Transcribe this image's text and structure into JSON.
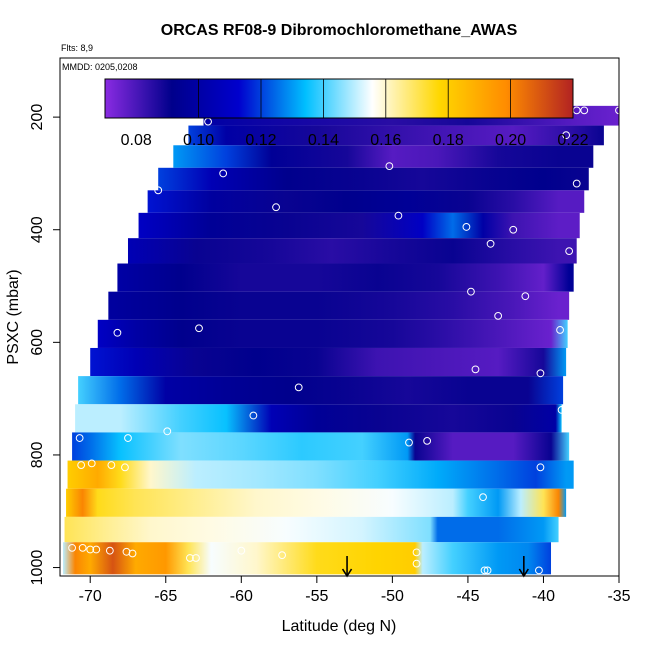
{
  "chart_data": {
    "type": "heatmap",
    "title": "ORCAS RF08-9 Dibromochloromethane_AWAS",
    "flights_label": "Flts: 8,9",
    "dates_label": "MMDD: 0205,0208",
    "xlabel": "Latitude (deg N)",
    "ylabel": "PSXC (mbar)",
    "xlim": [
      -72.0,
      -35.0
    ],
    "ylim": [
      1015,
      95
    ],
    "x_ticks": [
      -70,
      -65,
      -60,
      -55,
      -50,
      -45,
      -40,
      -35
    ],
    "x_tick_labels": [
      "-70",
      "-65",
      "-60",
      "-55",
      "-50",
      "-45",
      "-40",
      "-35"
    ],
    "y_ticks": [
      200,
      400,
      600,
      800,
      1000
    ],
    "y_tick_labels": [
      "200",
      "400",
      "600",
      "800",
      "1000"
    ],
    "colorbar": {
      "range": [
        0.07,
        0.22
      ],
      "ticks": [
        0.08,
        0.1,
        0.12,
        0.14,
        0.16,
        0.18,
        0.2,
        0.22
      ],
      "tick_labels": [
        "0.08",
        "0.10",
        "0.12",
        "0.14",
        "0.16",
        "0.18",
        "0.20",
        "0.22"
      ],
      "colors": [
        "#8a2be2",
        "#00008b",
        "#0000cd",
        "#00bfff",
        "#ffffff",
        "#ffd700",
        "#ff8c00",
        "#b22222"
      ],
      "dividers": [
        0.1,
        0.12,
        0.14,
        0.16,
        0.18,
        0.2
      ]
    },
    "bands": [
      {
        "p_top": 180,
        "p_bot": 215,
        "lat_start": -62.5,
        "lat_end": -35.0,
        "nodes": [
          [
            -62.5,
            0.1
          ],
          [
            -50,
            0.085
          ],
          [
            -45,
            0.088
          ],
          [
            -38,
            0.078
          ],
          [
            -35,
            0.075
          ]
        ]
      },
      {
        "p_top": 215,
        "p_bot": 250,
        "lat_start": -63.5,
        "lat_end": -36.0,
        "nodes": [
          [
            -63.5,
            0.12
          ],
          [
            -61,
            0.1
          ],
          [
            -55,
            0.088
          ],
          [
            -48,
            0.082
          ],
          [
            -42,
            0.078
          ],
          [
            -38,
            0.085
          ],
          [
            -36,
            0.09
          ]
        ]
      },
      {
        "p_top": 250,
        "p_bot": 290,
        "lat_start": -64.5,
        "lat_end": -36.7,
        "nodes": [
          [
            -64.5,
            0.13
          ],
          [
            -61,
            0.12
          ],
          [
            -58,
            0.095
          ],
          [
            -53,
            0.088
          ],
          [
            -50,
            0.078
          ],
          [
            -47,
            0.08
          ],
          [
            -43,
            0.088
          ],
          [
            -39,
            0.09
          ]
        ]
      },
      {
        "p_top": 290,
        "p_bot": 330,
        "lat_start": -65.5,
        "lat_end": -37.0,
        "nodes": [
          [
            -65.5,
            0.12
          ],
          [
            -62,
            0.105
          ],
          [
            -57,
            0.092
          ],
          [
            -52,
            0.09
          ],
          [
            -48,
            0.088
          ],
          [
            -44,
            0.09
          ],
          [
            -40,
            0.092
          ],
          [
            -37,
            0.09
          ]
        ]
      },
      {
        "p_top": 330,
        "p_bot": 370,
        "lat_start": -66.2,
        "lat_end": -37.3,
        "nodes": [
          [
            -66.2,
            0.115
          ],
          [
            -62,
            0.098
          ],
          [
            -57,
            0.09
          ],
          [
            -53,
            0.092
          ],
          [
            -49,
            0.095
          ],
          [
            -45,
            0.09
          ],
          [
            -42,
            0.085
          ],
          [
            -39,
            0.078
          ]
        ]
      },
      {
        "p_top": 370,
        "p_bot": 415,
        "lat_start": -66.8,
        "lat_end": -37.6,
        "nodes": [
          [
            -66.8,
            0.11
          ],
          [
            -62,
            0.095
          ],
          [
            -57,
            0.09
          ],
          [
            -52,
            0.088
          ],
          [
            -48,
            0.11
          ],
          [
            -46,
            0.125
          ],
          [
            -44,
            0.1
          ],
          [
            -42,
            0.082
          ],
          [
            -39,
            0.077
          ]
        ]
      },
      {
        "p_top": 415,
        "p_bot": 460,
        "lat_start": -67.5,
        "lat_end": -37.8,
        "nodes": [
          [
            -67.5,
            0.105
          ],
          [
            -63,
            0.09
          ],
          [
            -58,
            0.088
          ],
          [
            -54,
            0.085
          ],
          [
            -50,
            0.088
          ],
          [
            -46,
            0.09
          ],
          [
            -42,
            0.085
          ],
          [
            -39,
            0.082
          ]
        ]
      },
      {
        "p_top": 460,
        "p_bot": 510,
        "lat_start": -68.2,
        "lat_end": -38.0,
        "nodes": [
          [
            -68.2,
            0.1
          ],
          [
            -64,
            0.092
          ],
          [
            -60,
            0.088
          ],
          [
            -55,
            0.088
          ],
          [
            -51,
            0.09
          ],
          [
            -47,
            0.088
          ],
          [
            -43,
            0.082
          ],
          [
            -40,
            0.076
          ],
          [
            -38.3,
            0.095
          ]
        ]
      },
      {
        "p_top": 510,
        "p_bot": 560,
        "lat_start": -68.8,
        "lat_end": -38.3,
        "nodes": [
          [
            -68.8,
            0.098
          ],
          [
            -64,
            0.092
          ],
          [
            -60,
            0.09
          ],
          [
            -55,
            0.09
          ],
          [
            -50,
            0.088
          ],
          [
            -46,
            0.085
          ],
          [
            -42,
            0.08
          ],
          [
            -39,
            0.075
          ]
        ]
      },
      {
        "p_top": 560,
        "p_bot": 610,
        "lat_start": -69.5,
        "lat_end": -38.4,
        "nodes": [
          [
            -69.5,
            0.11
          ],
          [
            -67,
            0.1
          ],
          [
            -64,
            0.092
          ],
          [
            -60,
            0.09
          ],
          [
            -55,
            0.09
          ],
          [
            -50,
            0.088
          ],
          [
            -47,
            0.085
          ],
          [
            -43,
            0.08
          ],
          [
            -39.5,
            0.075
          ],
          [
            -38.4,
            0.14
          ]
        ]
      },
      {
        "p_top": 610,
        "p_bot": 660,
        "lat_start": -70.0,
        "lat_end": -38.5,
        "nodes": [
          [
            -70,
            0.115
          ],
          [
            -67,
            0.105
          ],
          [
            -63,
            0.09
          ],
          [
            -59,
            0.092
          ],
          [
            -55,
            0.09
          ],
          [
            -51,
            0.082
          ],
          [
            -47,
            0.08
          ],
          [
            -43,
            0.078
          ],
          [
            -40,
            0.088
          ],
          [
            -38.5,
            0.13
          ]
        ]
      },
      {
        "p_top": 660,
        "p_bot": 710,
        "lat_start": -70.8,
        "lat_end": -38.7,
        "nodes": [
          [
            -70.8,
            0.14
          ],
          [
            -68,
            0.125
          ],
          [
            -65,
            0.1
          ],
          [
            -61,
            0.095
          ],
          [
            -57,
            0.092
          ],
          [
            -53,
            0.09
          ],
          [
            -49,
            0.088
          ],
          [
            -45,
            0.09
          ],
          [
            -41,
            0.09
          ],
          [
            -38.7,
            0.12
          ]
        ]
      },
      {
        "p_top": 710,
        "p_bot": 760,
        "lat_start": -71.0,
        "lat_end": -38.8,
        "nodes": [
          [
            -71,
            0.15
          ],
          [
            -68,
            0.15
          ],
          [
            -64,
            0.14
          ],
          [
            -61,
            0.135
          ],
          [
            -58,
            0.105
          ],
          [
            -55,
            0.095
          ],
          [
            -51,
            0.09
          ],
          [
            -46,
            0.088
          ],
          [
            -42,
            0.09
          ],
          [
            -39.2,
            0.1
          ],
          [
            -38.8,
            0.135
          ]
        ]
      },
      {
        "p_top": 760,
        "p_bot": 810,
        "lat_start": -71.2,
        "lat_end": -38.3,
        "nodes": [
          [
            -71.2,
            0.12
          ],
          [
            -70,
            0.125
          ],
          [
            -68,
            0.135
          ],
          [
            -64,
            0.145
          ],
          [
            -60,
            0.142
          ],
          [
            -56,
            0.138
          ],
          [
            -52,
            0.14
          ],
          [
            -49,
            0.13
          ],
          [
            -48.5,
            0.09
          ],
          [
            -46,
            0.078
          ],
          [
            -42,
            0.078
          ],
          [
            -39.5,
            0.09
          ],
          [
            -38.3,
            0.14
          ]
        ]
      },
      {
        "p_top": 810,
        "p_bot": 860,
        "lat_start": -71.5,
        "lat_end": -38.0,
        "nodes": [
          [
            -71.5,
            0.18
          ],
          [
            -69.5,
            0.19
          ],
          [
            -68,
            0.175
          ],
          [
            -66,
            0.16
          ],
          [
            -63,
            0.15
          ],
          [
            -59,
            0.148
          ],
          [
            -55,
            0.145
          ],
          [
            -51,
            0.14
          ],
          [
            -47,
            0.132
          ],
          [
            -43,
            0.125
          ],
          [
            -40.5,
            0.12
          ],
          [
            -38.5,
            0.13
          ]
        ]
      },
      {
        "p_top": 860,
        "p_bot": 910,
        "lat_start": -71.6,
        "lat_end": -38.5,
        "nodes": [
          [
            -71.6,
            0.18
          ],
          [
            -70.5,
            0.2
          ],
          [
            -69.5,
            0.175
          ],
          [
            -67,
            0.17
          ],
          [
            -63,
            0.165
          ],
          [
            -59,
            0.16
          ],
          [
            -55,
            0.158
          ],
          [
            -50,
            0.155
          ],
          [
            -46,
            0.15
          ],
          [
            -45,
            0.14
          ],
          [
            -43,
            0.13
          ],
          [
            -41.5,
            0.15
          ],
          [
            -40,
            0.17
          ],
          [
            -39,
            0.2
          ],
          [
            -38.5,
            0.13
          ]
        ]
      },
      {
        "p_top": 910,
        "p_bot": 955,
        "lat_start": -71.7,
        "lat_end": -39.0,
        "nodes": [
          [
            -71.7,
            0.17
          ],
          [
            -69,
            0.165
          ],
          [
            -66,
            0.16
          ],
          [
            -62,
            0.158
          ],
          [
            -57,
            0.155
          ],
          [
            -52,
            0.152
          ],
          [
            -47.5,
            0.145
          ],
          [
            -47,
            0.125
          ],
          [
            -43,
            0.125
          ],
          [
            -40,
            0.13
          ],
          [
            -39,
            0.14
          ]
        ]
      },
      {
        "p_top": 955,
        "p_bot": 1012,
        "lat_start": -71.8,
        "lat_end": -39.5,
        "nodes": [
          [
            -71.8,
            0.15
          ],
          [
            -71,
            0.2
          ],
          [
            -70,
            0.19
          ],
          [
            -68.5,
            0.21
          ],
          [
            -67,
            0.19
          ],
          [
            -65,
            0.195
          ],
          [
            -63.5,
            0.17
          ],
          [
            -62,
            0.155
          ],
          [
            -59,
            0.16
          ],
          [
            -55,
            0.175
          ],
          [
            -51,
            0.178
          ],
          [
            -48.5,
            0.18
          ],
          [
            -48,
            0.15
          ],
          [
            -46,
            0.14
          ],
          [
            -43,
            0.13
          ],
          [
            -41,
            0.128
          ],
          [
            -39.5,
            0.12
          ]
        ]
      }
    ],
    "sample_points": [
      [
        -62.2,
        208
      ],
      [
        -61.2,
        300
      ],
      [
        -57.7,
        360
      ],
      [
        -50.2,
        287
      ],
      [
        -49.6,
        375
      ],
      [
        -45.1,
        395
      ],
      [
        -43.5,
        425
      ],
      [
        -42.0,
        400
      ],
      [
        -37.8,
        318
      ],
      [
        -38.5,
        232
      ],
      [
        -37.8,
        188
      ],
      [
        -37.3,
        188
      ],
      [
        -35.0,
        188
      ],
      [
        -65.5,
        330
      ],
      [
        -68.2,
        583
      ],
      [
        -70.1,
        575
      ],
      [
        -62.8,
        575
      ],
      [
        -56.2,
        680
      ],
      [
        -59.2,
        730
      ],
      [
        -64.9,
        758
      ],
      [
        -67.5,
        770
      ],
      [
        -70.7,
        770
      ],
      [
        -44.8,
        510
      ],
      [
        -43.0,
        553
      ],
      [
        -41.2,
        518
      ],
      [
        -44.5,
        648
      ],
      [
        -40.2,
        655
      ],
      [
        -38.9,
        578
      ],
      [
        -38.3,
        438
      ],
      [
        -38.8,
        720
      ],
      [
        -48.9,
        778
      ],
      [
        -47.7,
        775
      ],
      [
        -40.2,
        822
      ],
      [
        -70.6,
        818
      ],
      [
        -69.9,
        815
      ],
      [
        -68.6,
        818
      ],
      [
        -67.7,
        822
      ],
      [
        -44.0,
        875
      ],
      [
        -71.2,
        965
      ],
      [
        -70.5,
        965
      ],
      [
        -70.0,
        968
      ],
      [
        -69.6,
        968
      ],
      [
        -68.7,
        970
      ],
      [
        -67.6,
        972
      ],
      [
        -67.2,
        975
      ],
      [
        -63.4,
        983
      ],
      [
        -63.0,
        983
      ],
      [
        -60.0,
        970
      ],
      [
        -57.3,
        978
      ],
      [
        -48.4,
        973
      ],
      [
        -48.4,
        993
      ],
      [
        -43.9,
        1005
      ],
      [
        -43.7,
        1005
      ],
      [
        -40.3,
        1005
      ]
    ],
    "arrows": [
      -53.0,
      -41.3
    ]
  }
}
